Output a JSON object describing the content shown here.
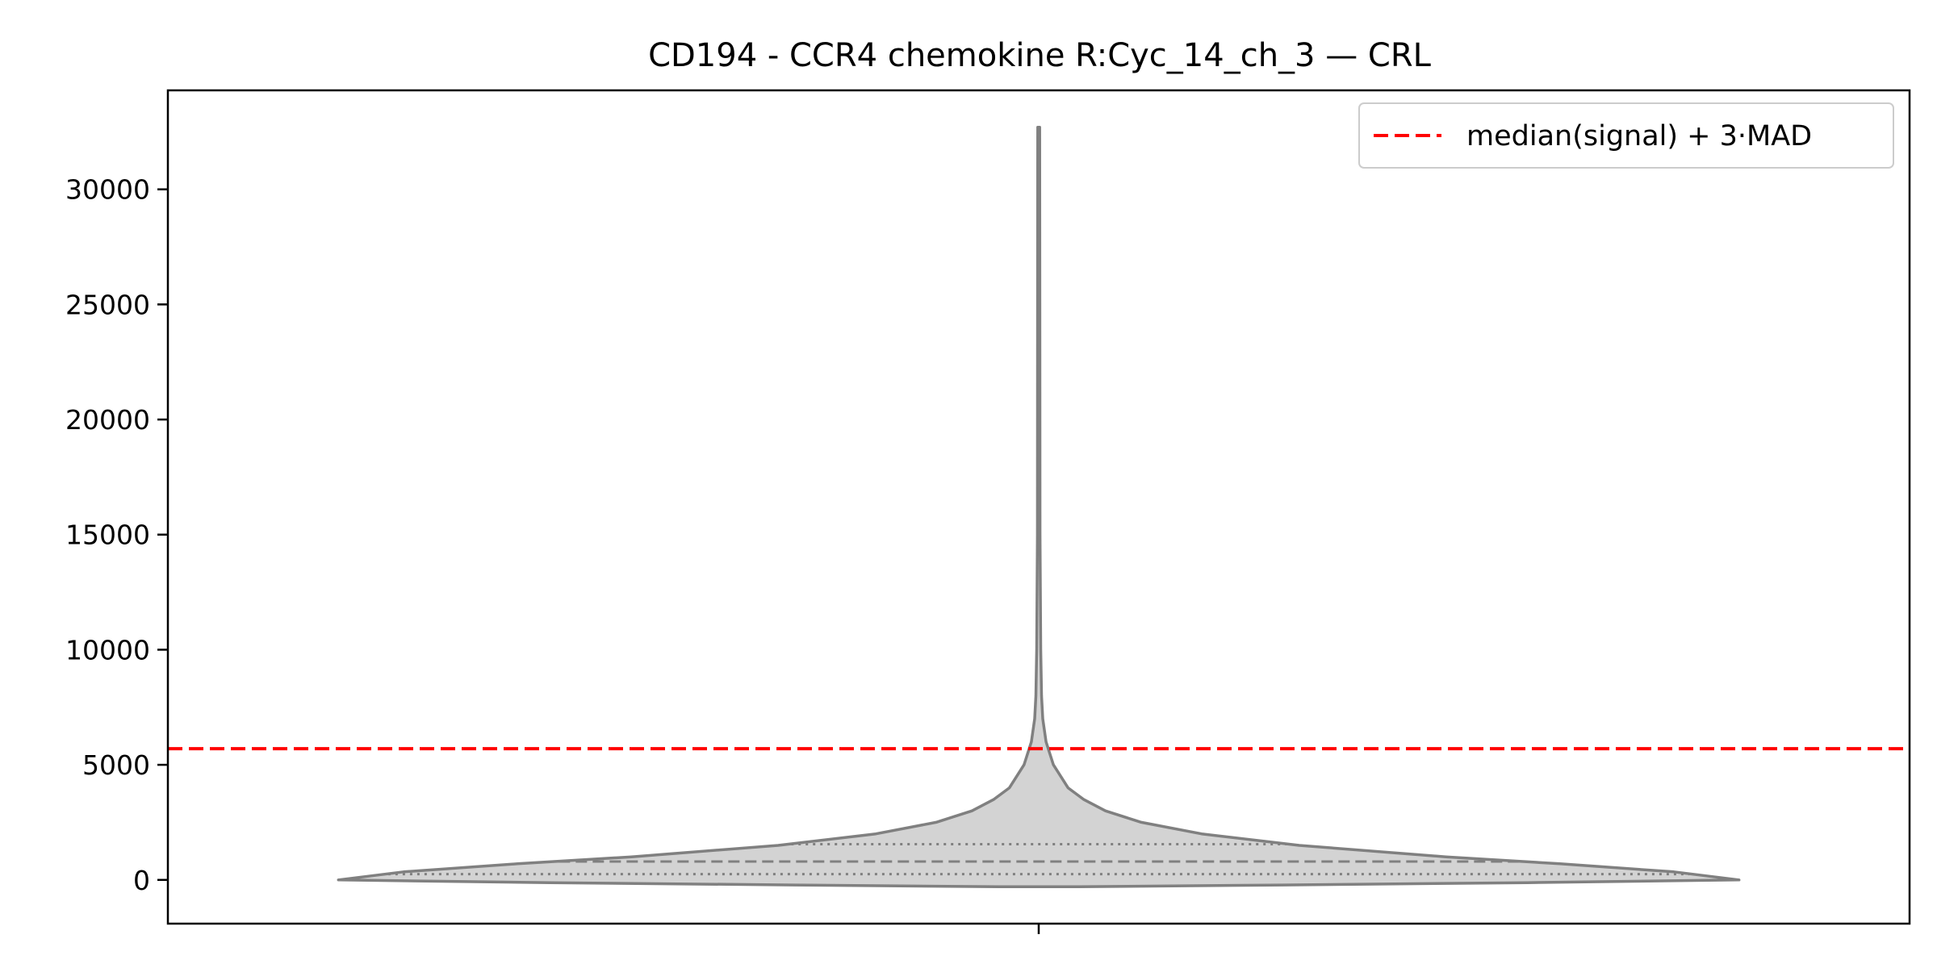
{
  "chart_data": {
    "type": "violin",
    "title": "CD194 - CCR4 chemokine R:Cyc_14_ch_3 — CRL",
    "xlabel": "",
    "ylabel": "",
    "ylim": [
      -1900,
      34300
    ],
    "yticks": [
      0,
      5000,
      10000,
      15000,
      20000,
      25000,
      30000
    ],
    "ytick_labels": [
      "0",
      "5000",
      "10000",
      "15000",
      "20000",
      "25000",
      "30000"
    ],
    "grid": false,
    "violin": {
      "fill_color": "#d3d3d3",
      "edge_color": "#808080",
      "min": -300,
      "max": 32700,
      "quartiles": {
        "q1": 250,
        "median": 800,
        "q3": 1550
      },
      "density_profile": [
        {
          "y": -300,
          "half_width_fraction": 0.05
        },
        {
          "y": -220,
          "half_width_fraction": 0.3
        },
        {
          "y": -120,
          "half_width_fraction": 0.6
        },
        {
          "y": 0,
          "half_width_fraction": 0.86
        },
        {
          "y": 350,
          "half_width_fraction": 0.78
        },
        {
          "y": 700,
          "half_width_fraction": 0.64
        },
        {
          "y": 1000,
          "half_width_fraction": 0.5
        },
        {
          "y": 1500,
          "half_width_fraction": 0.32
        },
        {
          "y": 2000,
          "half_width_fraction": 0.2
        },
        {
          "y": 2500,
          "half_width_fraction": 0.126
        },
        {
          "y": 3000,
          "half_width_fraction": 0.082
        },
        {
          "y": 3500,
          "half_width_fraction": 0.055
        },
        {
          "y": 4000,
          "half_width_fraction": 0.036
        },
        {
          "y": 5000,
          "half_width_fraction": 0.018
        },
        {
          "y": 6000,
          "half_width_fraction": 0.009
        },
        {
          "y": 7000,
          "half_width_fraction": 0.005
        },
        {
          "y": 8000,
          "half_width_fraction": 0.0035
        },
        {
          "y": 10000,
          "half_width_fraction": 0.0025
        },
        {
          "y": 15000,
          "half_width_fraction": 0.0016
        },
        {
          "y": 25000,
          "half_width_fraction": 0.0014
        },
        {
          "y": 32700,
          "half_width_fraction": 0.0012
        }
      ]
    },
    "threshold": {
      "value": 5700,
      "color": "#ff0000",
      "style": "dashed",
      "label": "median(signal) + 3·MAD"
    },
    "legend": {
      "position": "top-right",
      "entries": [
        "median(signal) + 3·MAD"
      ]
    }
  }
}
